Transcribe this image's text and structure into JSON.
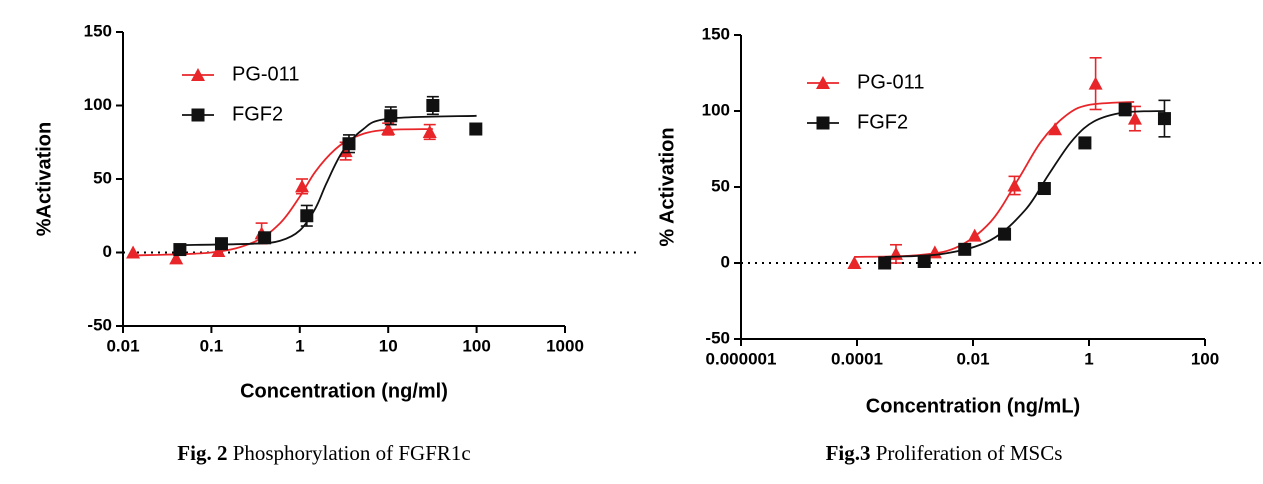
{
  "chart_data": [
    {
      "type": "scatter",
      "x_label": "Concentration (ng/ml)",
      "y_label": "%Activation",
      "xscale": "log",
      "xlim": [
        0.01,
        1000
      ],
      "xticks": [
        0.01,
        0.1,
        1,
        10,
        100,
        1000
      ],
      "ylim": [
        -50,
        150
      ],
      "yticks": [
        -50,
        0,
        50,
        100,
        150
      ],
      "refline": 0,
      "caption": {
        "label": "Fig. 2",
        "text": "Phosphorylation of FGFR1c"
      },
      "series": [
        {
          "name": "PG-011",
          "color": "#e8262a",
          "marker": "triangle",
          "x": [
            0.013,
            0.04,
            0.12,
            0.37,
            1.06,
            3.3,
            10,
            29.5
          ],
          "values": [
            0,
            -4,
            1,
            13,
            45,
            69,
            84,
            82
          ],
          "errors": [
            null,
            null,
            null,
            7,
            5,
            6,
            4,
            5
          ],
          "fit_x": [
            0.013,
            0.1,
            0.3,
            0.6,
            1,
            1.5,
            2.5,
            4,
            8,
            32
          ],
          "fit_y": [
            -2,
            0,
            7,
            20,
            38,
            55,
            70,
            78,
            83,
            84
          ]
        },
        {
          "name": "FGF2",
          "color": "#111111",
          "marker": "square",
          "x": [
            0.044,
            0.13,
            0.4,
            1.2,
            3.6,
            10.7,
            32,
            98
          ],
          "values": [
            2,
            6,
            10,
            25,
            74,
            93,
            100,
            84
          ],
          "errors": [
            null,
            null,
            null,
            7,
            6,
            6,
            6,
            null
          ],
          "fit_x": [
            0.044,
            0.3,
            0.6,
            1,
            1.5,
            2,
            3,
            5,
            10,
            100
          ],
          "fit_y": [
            5,
            6,
            8,
            15,
            30,
            47,
            68,
            83,
            91,
            93
          ]
        }
      ]
    },
    {
      "type": "scatter",
      "x_label": "Concentration (ng/mL)",
      "y_label": "% Activation",
      "xscale": "log",
      "xlim": [
        1e-06,
        100
      ],
      "xticks": [
        1e-06,
        0.0001,
        0.01,
        1,
        100
      ],
      "ylim": [
        -50,
        150
      ],
      "yticks": [
        -50,
        0,
        50,
        100,
        150
      ],
      "refline": 0,
      "caption": {
        "label": "Fig.3",
        "text": "Proliferation of MSCs"
      },
      "series": [
        {
          "name": "PG-011",
          "color": "#e8262a",
          "marker": "triangle",
          "x": [
            9e-05,
            0.00047,
            0.0022,
            0.0107,
            0.052,
            0.26,
            1.3,
            6.2
          ],
          "values": [
            0,
            6,
            7,
            18,
            51,
            88,
            118,
            95
          ],
          "errors": [
            null,
            6,
            null,
            null,
            6,
            null,
            17,
            8
          ],
          "fit_x": [
            9e-05,
            0.001,
            0.005,
            0.02,
            0.06,
            0.15,
            0.4,
            1,
            6
          ],
          "fit_y": [
            4,
            5,
            10,
            27,
            55,
            80,
            97,
            104,
            106
          ]
        },
        {
          "name": "FGF2",
          "color": "#111111",
          "marker": "square",
          "x": [
            0.0003,
            0.00144,
            0.0072,
            0.035,
            0.17,
            0.85,
            4.2,
            20
          ],
          "values": [
            0,
            1,
            9,
            19,
            49,
            79,
            101,
            95
          ],
          "errors": [
            null,
            null,
            null,
            null,
            null,
            null,
            4,
            12
          ],
          "fit_x": [
            0.0003,
            0.003,
            0.02,
            0.08,
            0.2,
            0.5,
            1.2,
            4,
            20
          ],
          "fit_y": [
            4,
            6,
            15,
            35,
            58,
            80,
            93,
            99,
            100
          ]
        }
      ]
    }
  ]
}
